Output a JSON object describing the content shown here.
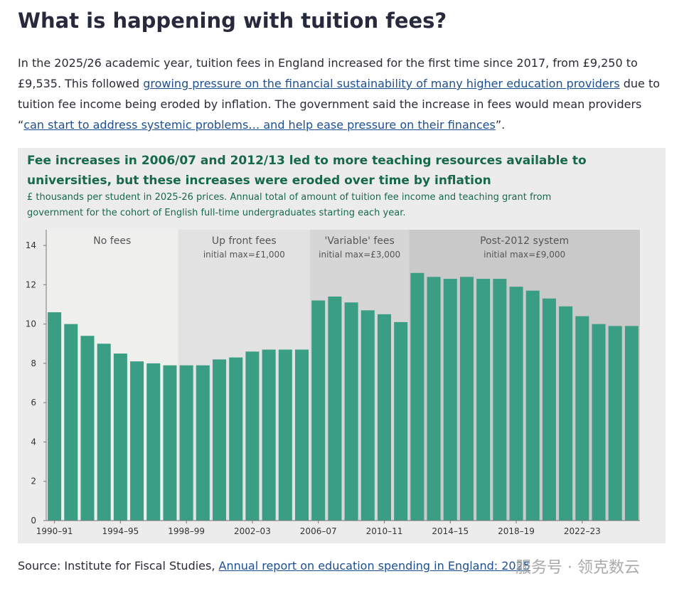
{
  "header": {
    "title": "What is happening with tuition fees?"
  },
  "intro": {
    "segments": [
      {
        "text": "In the 2025/26 academic year, tuition fees in England increased for the first time since 2017, from £9,250 to £9,535. This followed "
      },
      {
        "text": "growing pressure on the financial sustainability of many higher education providers",
        "link": true
      },
      {
        "text": " due to tuition fee income being eroded by inflation. The government said the increase in fees would mean providers “"
      },
      {
        "text": "can start to address systemic problems… and help ease pressure on their finances",
        "link": true
      },
      {
        "text": "”."
      }
    ]
  },
  "chart_data": {
    "type": "bar",
    "title": "Fee increases in 2006/07 and 2012/13 led to more teaching resources available to universities, but these increases were eroded over time by inflation",
    "subtitle": "£ thousands per student in 2025-26 prices. Annual total of amount of tuition fee income and teaching grant from government for the cohort of English full-time undergraduates starting each year.",
    "categories": [
      "1990–91",
      null,
      null,
      null,
      "1994–95",
      null,
      null,
      null,
      "1998–99",
      null,
      null,
      null,
      "2002–03",
      null,
      null,
      null,
      "2006–07",
      null,
      null,
      null,
      "2010–11",
      null,
      null,
      null,
      "2014–15",
      null,
      null,
      null,
      "2018–19",
      null,
      null,
      null,
      "2022–23",
      null,
      null,
      null
    ],
    "values": [
      10.6,
      10.0,
      9.4,
      9.0,
      8.5,
      8.1,
      8.0,
      7.9,
      7.9,
      7.9,
      8.2,
      8.3,
      8.6,
      8.7,
      8.7,
      8.7,
      11.2,
      11.4,
      11.1,
      10.7,
      10.5,
      10.1,
      12.6,
      12.4,
      12.3,
      12.4,
      12.3,
      12.3,
      11.9,
      11.7,
      11.3,
      10.9,
      10.4,
      10.0,
      9.9,
      9.9
    ],
    "color": "#3a9e85",
    "ylim": [
      0,
      14.8
    ],
    "yticks": [
      0,
      2,
      4,
      6,
      8,
      10,
      12,
      14
    ],
    "regions": [
      {
        "label": "No fees",
        "color": "#efefee"
      },
      {
        "label": "Up front fees",
        "sublabel": "initial max=£1,000",
        "color": "#e2e2e2"
      },
      {
        "label": "'Variable' fees",
        "sublabel": "initial max=£3,000",
        "color": "#d6d6d6"
      },
      {
        "label": "Post-2012 system",
        "sublabel": "initial max=£9,000",
        "color": "#c9c9c9"
      }
    ]
  },
  "source": {
    "prefix": "Source: Institute for Fiscal Studies, ",
    "link": "Annual report on education spending in England: 2025"
  },
  "watermark": "服务号 · 领克数云"
}
